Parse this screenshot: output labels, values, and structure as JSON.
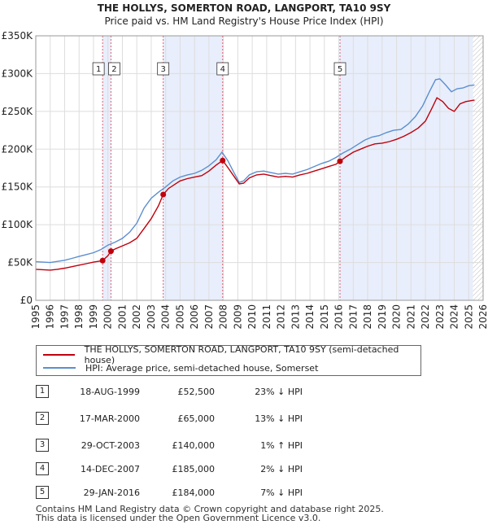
{
  "chart_data": {
    "type": "line",
    "title": "THE HOLLYS, SOMERTON ROAD, LANGPORT, TA10 9SY",
    "subtitle": "Price paid vs. HM Land Registry's House Price Index (HPI)",
    "xlabel": "",
    "ylabel": "",
    "xlim": [
      1995,
      2026
    ],
    "ylim": [
      0,
      350000
    ],
    "y_ticks": [
      0,
      50000,
      100000,
      150000,
      200000,
      250000,
      300000,
      350000
    ],
    "y_tick_labels": [
      "£0",
      "£50K",
      "£100K",
      "£150K",
      "£200K",
      "£250K",
      "£300K",
      "£350K"
    ],
    "x_ticks": [
      1995,
      1996,
      1997,
      1998,
      1999,
      2000,
      2001,
      2002,
      2003,
      2004,
      2005,
      2006,
      2007,
      2008,
      2009,
      2010,
      2011,
      2012,
      2013,
      2014,
      2015,
      2016,
      2017,
      2018,
      2019,
      2020,
      2021,
      2022,
      2023,
      2024,
      2025,
      2026
    ],
    "x_tick_labels": [
      "1995",
      "1996",
      "1997",
      "1998",
      "1999",
      "2000",
      "2001",
      "2002",
      "2003",
      "2004",
      "2005",
      "2006",
      "2007",
      "2008",
      "2009",
      "2010",
      "2011",
      "2012",
      "2013",
      "2014",
      "2015",
      "2016",
      "2017",
      "2018",
      "2019",
      "2020",
      "2021",
      "2022",
      "2023",
      "2024",
      "2025",
      "2026"
    ],
    "shaded_ranges": [
      [
        1999.63,
        2000.21
      ],
      [
        2003.83,
        2007.95
      ],
      [
        2016.08,
        2025.3
      ]
    ],
    "hatched_from": 2025.3,
    "series": [
      {
        "name": "HPI: Average price, semi-detached house, Somerset",
        "color": "#5b8fd0",
        "x": [
          1995,
          1995.5,
          1996,
          1996.5,
          1997,
          1997.5,
          1998,
          1998.5,
          1999,
          1999.5,
          2000,
          2000.5,
          2001,
          2001.5,
          2002,
          2002.5,
          2003,
          2003.5,
          2004,
          2004.5,
          2005,
          2005.5,
          2006,
          2006.5,
          2007,
          2007.5,
          2007.9,
          2008.3,
          2008.7,
          2009.1,
          2009.4,
          2009.8,
          2010.3,
          2010.8,
          2011.3,
          2011.8,
          2012.3,
          2012.8,
          2013.3,
          2013.8,
          2014.3,
          2014.8,
          2015.3,
          2015.8,
          2016.3,
          2016.8,
          2017.3,
          2017.8,
          2018.3,
          2018.8,
          2019.3,
          2019.8,
          2020.3,
          2020.8,
          2021.3,
          2021.8,
          2022.3,
          2022.7,
          2023.0,
          2023.4,
          2023.8,
          2024.2,
          2024.6,
          2025.0,
          2025.4
        ],
        "values": [
          51000,
          50500,
          50000,
          51500,
          53000,
          55500,
          58000,
          60500,
          63000,
          67000,
          73000,
          77000,
          82000,
          90000,
          102000,
          122000,
          135000,
          143000,
          150000,
          158000,
          163000,
          166000,
          168000,
          172000,
          178000,
          186000,
          196000,
          185000,
          170000,
          156000,
          158000,
          166000,
          170000,
          171000,
          169000,
          167000,
          168000,
          167000,
          170000,
          173000,
          177000,
          181000,
          184000,
          189000,
          195000,
          200000,
          206000,
          212000,
          216000,
          218000,
          222000,
          225000,
          226000,
          233000,
          243000,
          257000,
          277000,
          292000,
          293000,
          285000,
          276000,
          280000,
          281000,
          284000,
          285000
        ]
      },
      {
        "name": "THE HOLLYS, SOMERTON ROAD, LANGPORT, TA10 9SY (semi-detached house)",
        "color": "#c0000d",
        "x": [
          1995,
          1995.5,
          1996,
          1996.5,
          1997,
          1997.5,
          1998,
          1998.5,
          1999,
          1999.5,
          1999.63,
          2000.0,
          2000.21,
          2000.5,
          2001,
          2001.5,
          2002,
          2002.5,
          2003,
          2003.5,
          2003.83,
          2004.2,
          2004.6,
          2005,
          2005.5,
          2006,
          2006.5,
          2007,
          2007.5,
          2007.95,
          2008.3,
          2008.7,
          2009.1,
          2009.4,
          2009.8,
          2010.3,
          2010.8,
          2011.3,
          2011.8,
          2012.3,
          2012.8,
          2013.3,
          2013.8,
          2014.3,
          2014.8,
          2015.3,
          2015.8,
          2016.08,
          2016.5,
          2017,
          2017.5,
          2018,
          2018.5,
          2019,
          2019.5,
          2020,
          2020.5,
          2021,
          2021.5,
          2022,
          2022.5,
          2022.8,
          2023.2,
          2023.6,
          2024.0,
          2024.4,
          2024.8,
          2025.4
        ],
        "values": [
          41000,
          40500,
          40000,
          41000,
          42500,
          44500,
          46500,
          48500,
          50500,
          52000,
          52500,
          59000,
          65000,
          68000,
          72000,
          76000,
          82000,
          95000,
          108000,
          125000,
          140000,
          148000,
          153000,
          158000,
          161000,
          163000,
          165000,
          171000,
          179000,
          185000,
          176000,
          165000,
          154000,
          155000,
          162000,
          166000,
          167000,
          165000,
          163000,
          164000,
          163000,
          166000,
          168000,
          171000,
          174000,
          177000,
          180000,
          184000,
          190000,
          196000,
          200000,
          204000,
          207000,
          208000,
          210000,
          213000,
          217000,
          222000,
          228000,
          237000,
          256000,
          268000,
          263000,
          254000,
          250000,
          260000,
          263000,
          265000
        ]
      }
    ],
    "sales": [
      {
        "label": "1",
        "date": "18-AUG-1999",
        "price": "£52,500",
        "hpi": "23% ↓ HPI",
        "x": 1999.63,
        "value": 52500
      },
      {
        "label": "2",
        "date": "17-MAR-2000",
        "price": "£65,000",
        "hpi": "13% ↓ HPI",
        "x": 2000.21,
        "value": 65000
      },
      {
        "label": "3",
        "date": "29-OCT-2003",
        "price": "£140,000",
        "hpi": "1% ↑ HPI",
        "x": 2003.83,
        "value": 140000
      },
      {
        "label": "4",
        "date": "14-DEC-2007",
        "price": "£185,000",
        "hpi": "2% ↓ HPI",
        "x": 2007.95,
        "value": 185000
      },
      {
        "label": "5",
        "date": "29-JAN-2016",
        "price": "£184,000",
        "hpi": "7% ↓ HPI",
        "x": 2016.08,
        "value": 184000
      }
    ],
    "legend": [
      "THE HOLLYS, SOMERTON ROAD, LANGPORT, TA10 9SY (semi-detached house)",
      "HPI: Average price, semi-detached house, Somerset"
    ]
  },
  "footer": {
    "line1": "Contains HM Land Registry data © Crown copyright and database right 2025.",
    "line2": "This data is licensed under the Open Government Licence v3.0."
  }
}
